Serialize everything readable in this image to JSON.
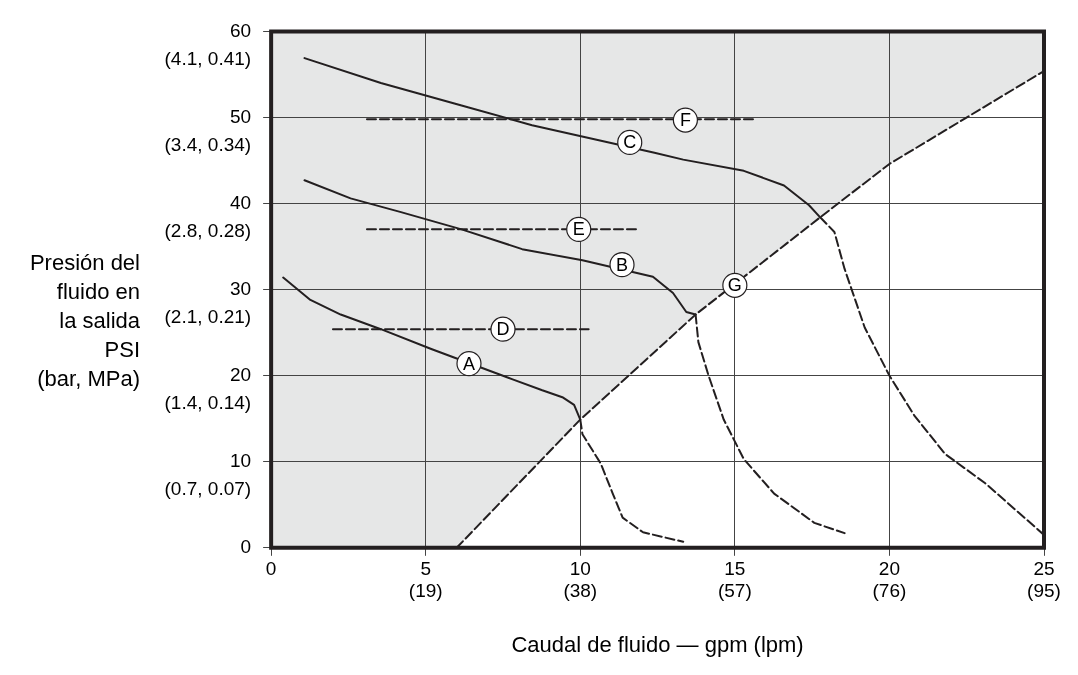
{
  "chart_data": {
    "type": "line",
    "xlabel": "Caudal de fluido — gpm (lpm)",
    "ylabel": "Presión del\nfluido en\nla salida\nPSI\n(bar, MPa)",
    "xlim": [
      0,
      25
    ],
    "ylim": [
      0,
      60
    ],
    "xticks": [
      0,
      5,
      10,
      15,
      20,
      25
    ],
    "yticks": [
      0,
      10,
      20,
      30,
      40,
      50,
      60
    ],
    "grid": true,
    "legend": false,
    "series": [
      {
        "color": "#231f20",
        "line_style": "solid",
        "x": [
          0.39,
          1.27,
          2.25,
          3.55,
          5.18,
          7.79,
          8.77,
          9.42,
          9.8,
          10.0
        ],
        "values": [
          31.4,
          28.8,
          27.1,
          25.4,
          23.1,
          19.6,
          18.3,
          17.5,
          16.6,
          14.9
        ]
      },
      {
        "color": "#231f20",
        "line_style": "dashed",
        "x": [
          10.0,
          10.07,
          10.66,
          11.05,
          11.37,
          12.03,
          13.33
        ],
        "values": [
          14.9,
          13.2,
          9.8,
          6.3,
          3.5,
          1.8,
          0.7
        ]
      },
      {
        "color": "#231f20",
        "line_style": "solid",
        "x": [
          1.08,
          2.57,
          4.2,
          6.16,
          8.12,
          10.07,
          12.35,
          13.0,
          13.43,
          13.73
        ],
        "values": [
          42.7,
          40.6,
          39.0,
          37.0,
          34.7,
          33.4,
          31.5,
          29.6,
          27.4,
          27.1
        ]
      },
      {
        "color": "#231f20",
        "line_style": "dashed",
        "x": [
          13.73,
          13.82,
          14.15,
          14.64,
          15.29,
          16.27,
          17.57,
          18.55
        ],
        "values": [
          27.1,
          23.9,
          20.0,
          14.9,
          10.3,
          6.3,
          2.9,
          1.7
        ]
      },
      {
        "color": "#231f20",
        "line_style": "solid",
        "x": [
          1.08,
          3.55,
          6.16,
          8.44,
          12.4,
          13.33,
          15.29,
          16.59,
          17.4,
          17.76
        ],
        "values": [
          56.9,
          54.0,
          51.4,
          49.1,
          45.9,
          45.1,
          43.8,
          42.1,
          39.8,
          38.4
        ]
      },
      {
        "color": "#231f20",
        "line_style": "dashed",
        "x": [
          17.76,
          18.22,
          18.55,
          19.2,
          20.0,
          20.8,
          21.8,
          23.1,
          25.0
        ],
        "values": [
          38.4,
          36.7,
          32.4,
          25.6,
          20.0,
          15.4,
          10.9,
          7.5,
          1.5
        ]
      },
      {
        "color": "#231f20",
        "line_style": "dashed",
        "x": [
          2.0,
          10.27
        ],
        "values": [
          25.4,
          25.4
        ]
      },
      {
        "color": "#231f20",
        "line_style": "dashed",
        "x": [
          3.1,
          11.9
        ],
        "values": [
          37.0,
          37.0
        ]
      },
      {
        "color": "#231f20",
        "line_style": "dashed",
        "x": [
          3.1,
          15.7
        ],
        "values": [
          49.8,
          49.8
        ]
      },
      {
        "color": "#231f20",
        "line_style": "dashed",
        "x": [
          6.0,
          10.0,
          13.73,
          17.76,
          20.0,
          25.0
        ],
        "values": [
          0,
          14.9,
          27.1,
          38.4,
          44.6,
          55.4
        ]
      }
    ],
    "annotations": [
      {
        "text": "A",
        "x": 6.4,
        "y": 21.4
      },
      {
        "text": "B",
        "x": 11.35,
        "y": 32.9
      },
      {
        "text": "C",
        "x": 11.6,
        "y": 47.1
      },
      {
        "text": "D",
        "x": 7.5,
        "y": 25.4
      },
      {
        "text": "E",
        "x": 9.95,
        "y": 37.0
      },
      {
        "text": "F",
        "x": 13.4,
        "y": 49.7
      },
      {
        "text": "G",
        "x": 15.0,
        "y": 30.5
      },
      "(19)",
      "(38)",
      "(57)",
      "(76)",
      "(95)",
      "(0.7, 0.07)",
      "(1.4, 0.14)",
      "(2.1, 0.21)",
      "(2.8, 0.28)",
      "(3.4, 0.34)",
      "(4.1, 0.41)"
    ]
  }
}
